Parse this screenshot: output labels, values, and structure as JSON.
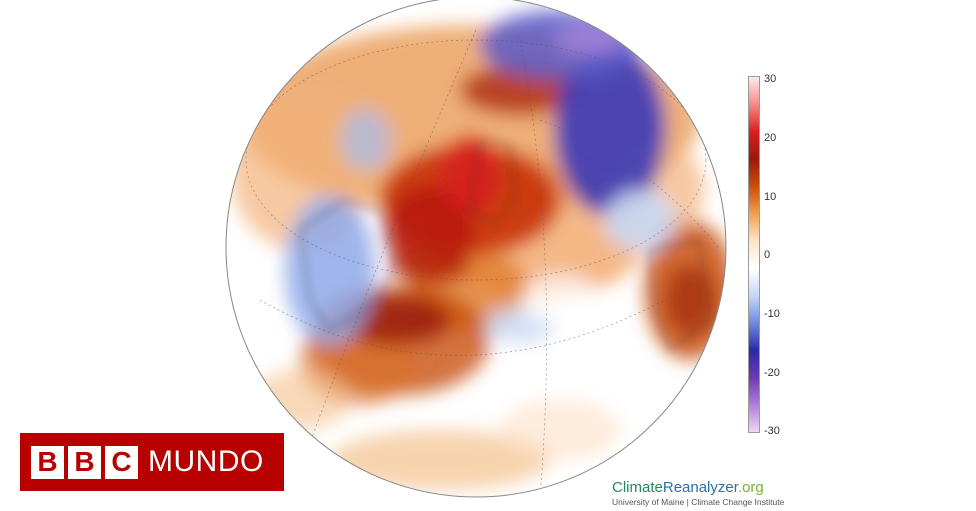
{
  "colorbar": {
    "ticks": [
      "30",
      "20",
      "10",
      "0",
      "-10",
      "-20",
      "-30"
    ],
    "stops": [
      "#fdecec",
      "#f58a8a",
      "#d62020",
      "#9a1a0a",
      "#c8500a",
      "#f0a050",
      "#fde4c8",
      "#ffffff",
      "#c8d8f4",
      "#6e8ce0",
      "#2a2aa8",
      "#6a3ab0",
      "#b27ed8",
      "#ecd8f6"
    ]
  },
  "logo": {
    "letters": [
      "B",
      "B",
      "C"
    ],
    "word": "MUNDO",
    "bg_color": "#b80000"
  },
  "attribution": {
    "title_part1": "Climate",
    "title_part2": "Reanalyzer",
    "title_part3": ".org",
    "subtitle": "University of Maine | Climate Change Institute",
    "colors": {
      "part1": "#1f8a5a",
      "part2": "#2a6fb0",
      "part3": "#7ab03a"
    }
  },
  "map": {
    "type": "anomaly-globe",
    "ocean_base_color": "#ffffff",
    "warm_colors": [
      "#9a1a0a",
      "#d22a1a",
      "#c8500a",
      "#e07a2a",
      "#f4b27a",
      "#fde0c4"
    ],
    "cold_colors": [
      "#2a2aa8",
      "#5060c8",
      "#8ea8e8",
      "#c8d8f4",
      "#b48ad8"
    ]
  }
}
